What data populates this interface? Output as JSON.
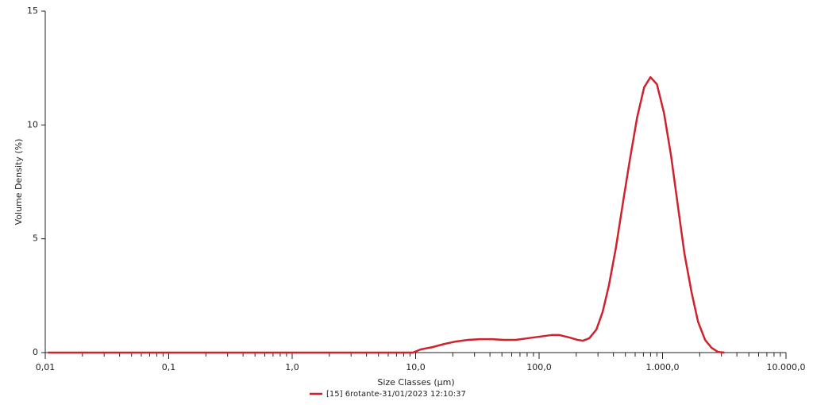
{
  "chart_data": {
    "type": "line",
    "xlabel": "Size Classes (µm)",
    "ylabel": "Volume Density (%)",
    "xscale": "log",
    "xlim": [
      0.01,
      10000
    ],
    "ylim": [
      0,
      15
    ],
    "xticks": [
      {
        "value": 0.01,
        "label": "0,01"
      },
      {
        "value": 0.1,
        "label": "0,1"
      },
      {
        "value": 1,
        "label": "1,0"
      },
      {
        "value": 10,
        "label": "10,0"
      },
      {
        "value": 100,
        "label": "100,0"
      },
      {
        "value": 1000,
        "label": "1.000,0"
      },
      {
        "value": 10000,
        "label": "10.000,0"
      }
    ],
    "xminorticks": [
      0.02,
      0.03,
      0.04,
      0.05,
      0.06,
      0.07,
      0.08,
      0.09,
      0.2,
      0.3,
      0.4,
      0.5,
      0.6,
      0.7,
      0.8,
      0.9,
      2,
      3,
      4,
      5,
      6,
      7,
      8,
      9,
      20,
      30,
      40,
      50,
      60,
      70,
      80,
      90,
      200,
      300,
      400,
      500,
      600,
      700,
      800,
      900,
      2000,
      3000,
      4000,
      5000,
      6000,
      7000,
      8000,
      9000
    ],
    "yticks": [
      0,
      5,
      10,
      15
    ],
    "x": [
      0.0105,
      0.1,
      1,
      9.5,
      11,
      13.7,
      17.1,
      21.3,
      26.6,
      33.2,
      41.5,
      51.8,
      64.7,
      80.8,
      101,
      126,
      146,
      177,
      204,
      227,
      255,
      291,
      327,
      367,
      419,
      478,
      545,
      622,
      709,
      798,
      900,
      1027,
      1172,
      1320,
      1506,
      1718,
      1937,
      2210,
      2493,
      2812,
      3172
    ],
    "series": [
      {
        "name": "[15] 6rotante-31/01/2023 12:10:37",
        "color": "#d0222c",
        "values": [
          0,
          0,
          0,
          0,
          0.14,
          0.24,
          0.38,
          0.49,
          0.56,
          0.59,
          0.59,
          0.56,
          0.56,
          0.63,
          0.7,
          0.77,
          0.77,
          0.66,
          0.56,
          0.52,
          0.63,
          1.01,
          1.78,
          2.93,
          4.6,
          6.59,
          8.51,
          10.32,
          11.65,
          12.1,
          11.79,
          10.53,
          8.65,
          6.59,
          4.33,
          2.65,
          1.36,
          0.56,
          0.21,
          0.03,
          0
        ]
      }
    ]
  }
}
